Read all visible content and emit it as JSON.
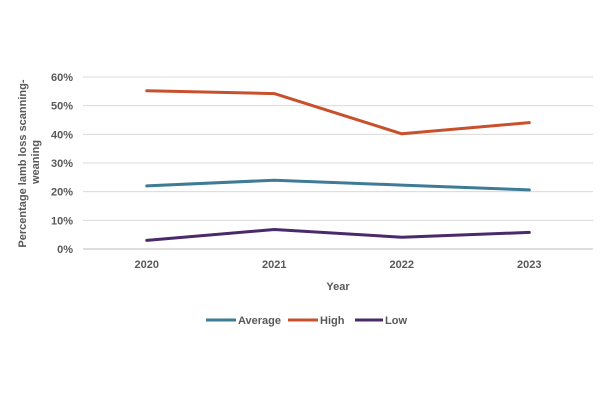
{
  "chart_data": {
    "type": "line",
    "categories": [
      "2020",
      "2021",
      "2022",
      "2023"
    ],
    "series": [
      {
        "name": "Average",
        "color": "#3E7B94",
        "values": [
          0.22,
          0.24,
          0.223,
          0.206
        ]
      },
      {
        "name": "High",
        "color": "#C8502D",
        "values": [
          0.552,
          0.542,
          0.402,
          0.441
        ]
      },
      {
        "name": "Low",
        "color": "#4A2A6A",
        "values": [
          0.03,
          0.068,
          0.041,
          0.058
        ]
      }
    ],
    "title": "",
    "xlabel": "Year",
    "ylabel_lines": [
      "Percentage lamb loss scanning-",
      "weaning"
    ],
    "ylim": [
      0,
      0.6
    ],
    "yticks": [
      "0%",
      "10%",
      "20%",
      "30%",
      "40%",
      "50%",
      "60%"
    ],
    "grid": true,
    "legend_position": "bottom"
  }
}
